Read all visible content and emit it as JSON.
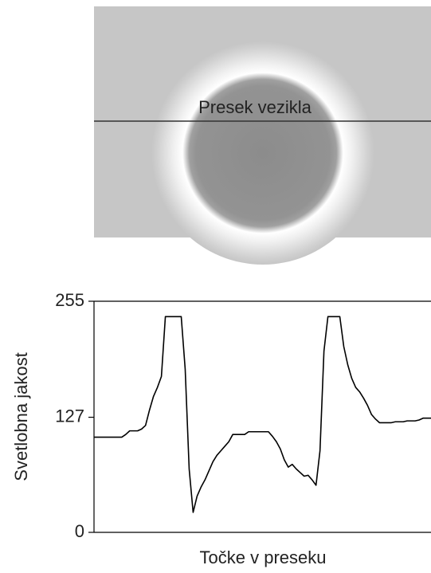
{
  "image_label": "Presek vezikla",
  "chart_data": {
    "type": "line",
    "ylabel": "Svetlobna jakost",
    "xlabel": "Točke v preseku",
    "ylim": [
      0,
      255
    ],
    "yticks": [
      0,
      127,
      255
    ],
    "color": "#000000",
    "values": [
      105,
      105,
      105,
      105,
      105,
      105,
      105,
      105,
      108,
      112,
      112,
      112,
      114,
      118,
      135,
      150,
      160,
      172,
      238,
      238,
      238,
      238,
      238,
      180,
      70,
      22,
      40,
      50,
      58,
      68,
      78,
      85,
      90,
      95,
      100,
      108,
      108,
      108,
      108,
      111,
      111,
      111,
      111,
      111,
      111,
      106,
      100,
      92,
      80,
      72,
      75,
      70,
      66,
      62,
      63,
      58,
      52,
      90,
      200,
      238,
      238,
      238,
      238,
      205,
      185,
      170,
      160,
      155,
      148,
      140,
      130,
      125,
      121,
      121,
      121,
      121,
      122,
      122,
      122,
      123,
      123,
      123,
      124,
      126,
      126,
      126
    ]
  }
}
